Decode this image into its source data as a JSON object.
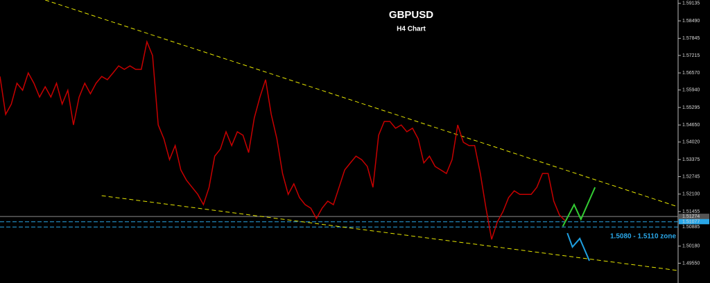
{
  "chart_data": {
    "type": "line",
    "title": "GBPUSD",
    "subtitle": "H4 Chart",
    "annotation": "1.5080 - 1.5110 zone",
    "xlim": [
      0,
      120
    ],
    "ylim": [
      1.4882,
      1.5926
    ],
    "yticks": [
      1.59135,
      {
        "value": 1.5849,
        "label": "1.58490"
      },
      1.57845,
      1.57215,
      {
        "value": 1.5657,
        "label": "1.56570"
      },
      {
        "value": 1.5594,
        "label": "1.55940"
      },
      1.55295,
      {
        "value": 1.5465,
        "label": "1.54650"
      },
      {
        "value": 1.5402,
        "label": "1.54020"
      },
      1.53375,
      1.52745,
      {
        "value": 1.521,
        "label": "1.52100"
      },
      1.51455,
      {
        "value": 1.5018,
        "label": "1.50180"
      },
      {
        "value": 1.4955,
        "label": "1.49550"
      }
    ],
    "series": [
      {
        "color": "#c80000",
        "values": [
          1.5644,
          1.5504,
          1.5542,
          1.5619,
          1.5593,
          1.5657,
          1.5619,
          1.5568,
          1.5606,
          1.5568,
          1.5619,
          1.5542,
          1.5593,
          1.5465,
          1.5568,
          1.5619,
          1.558,
          1.5619,
          1.5644,
          1.5632,
          1.5657,
          1.5683,
          1.567,
          1.5683,
          1.567,
          1.567,
          1.5772,
          1.5721,
          1.5465,
          1.5414,
          1.5337,
          1.5389,
          1.5299,
          1.5261,
          1.5235,
          1.5209,
          1.5171,
          1.5235,
          1.535,
          1.5376,
          1.544,
          1.5389,
          1.544,
          1.5427,
          1.5363,
          1.5491,
          1.5568,
          1.5632,
          1.5504,
          1.5414,
          1.5286,
          1.5209,
          1.5248,
          1.5197,
          1.5171,
          1.5158,
          1.512,
          1.5158,
          1.5184,
          1.5171,
          1.5235,
          1.5299,
          1.5325,
          1.535,
          1.5337,
          1.5312,
          1.5235,
          1.5427,
          1.5478,
          1.5478,
          1.5453,
          1.5465,
          1.544,
          1.5453,
          1.5414,
          1.5325,
          1.535,
          1.5312,
          1.5299,
          1.5286,
          1.5337,
          1.5465,
          1.5401,
          1.5389,
          1.5389,
          1.5286,
          1.5158,
          1.5043,
          1.5107,
          1.5145,
          1.5197,
          1.5222,
          1.5209,
          1.5209,
          1.5209,
          1.5235,
          1.5286,
          1.5286,
          1.5184,
          1.5133,
          1.5112
        ]
      }
    ],
    "levels": [
      {
        "value": 1.51274,
        "color": "#8c8c8c",
        "dashed": false,
        "label_bg": "#555555"
      },
      {
        "value": 1.51077,
        "color": "#2aa7e8",
        "dashed": true,
        "label_bg": "#2aa7e8"
      },
      {
        "value": 1.50885,
        "color": "#2aa7e8",
        "dashed": true,
        "label_bg": "#000000"
      }
    ],
    "trendlines": [
      {
        "color": "#e6e600",
        "x": [
          8,
          120
        ],
        "y": [
          1.5926,
          1.5163
        ]
      },
      {
        "color": "#e6e600",
        "x": [
          18,
          120
        ],
        "y": [
          1.5204,
          1.4928
        ]
      }
    ],
    "projections": [
      {
        "color": "#33cc33",
        "x": [
          99.6,
          101.6,
          102.8,
          105.3
        ],
        "y": [
          1.5091,
          1.5171,
          1.5117,
          1.5235
        ]
      },
      {
        "color": "#1e9fe0",
        "x": [
          100.4,
          101.3,
          102.6,
          104.3
        ],
        "y": [
          1.5066,
          1.5015,
          1.5046,
          1.4964
        ]
      }
    ]
  }
}
